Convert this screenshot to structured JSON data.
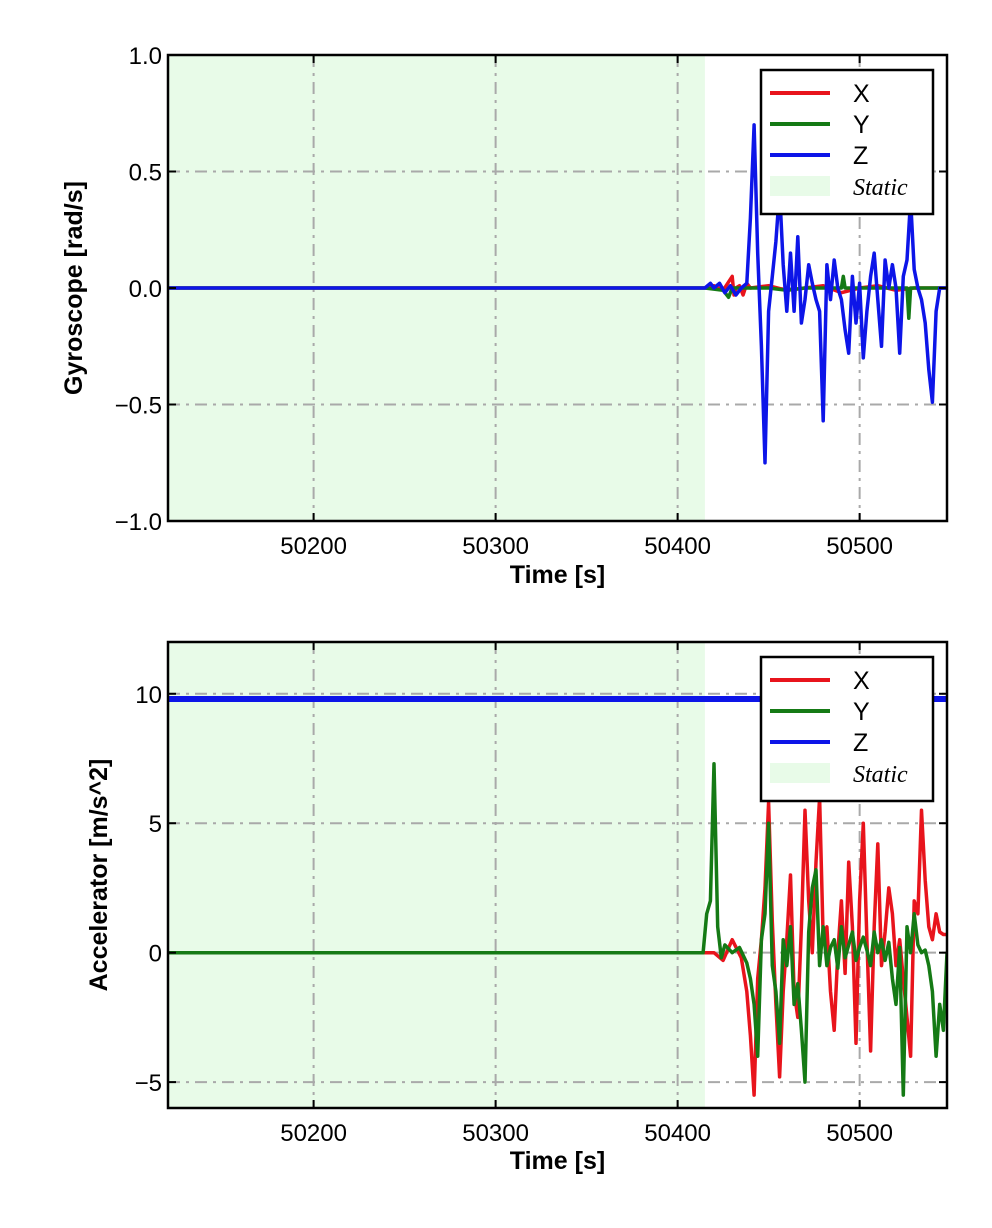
{
  "chart_data": [
    {
      "type": "line",
      "xlabel": "Time [s]",
      "ylabel": "Gyroscope [rad/s]",
      "xlim": [
        50120,
        50548
      ],
      "ylim": [
        -1.0,
        1.0
      ],
      "xticks": [
        50200,
        50300,
        50400,
        50500
      ],
      "xtick_labels": [
        "50200",
        "50300",
        "50400",
        "50500"
      ],
      "yticks": [
        -1.0,
        -0.5,
        0.0,
        0.5,
        1.0
      ],
      "ytick_labels": [
        "−1.0",
        "−0.5",
        "0.0",
        "0.5",
        "1.0"
      ],
      "grid": true,
      "legend_position": "top-right",
      "static_span": [
        50120,
        50415
      ],
      "static_label": "Static",
      "series": [
        {
          "name": "X",
          "color": "#e8141c",
          "x": [
            50120,
            50415,
            50420,
            50425,
            50430,
            50431,
            50432,
            50434,
            50436,
            50438,
            50440,
            50450,
            50460,
            50470,
            50480,
            50490,
            50500,
            50510,
            50520,
            50530,
            50540,
            50548
          ],
          "y": [
            0,
            0,
            0.01,
            -0.01,
            0.05,
            -0.03,
            0.0,
            0.01,
            -0.03,
            0.02,
            0.0,
            0.01,
            -0.01,
            0.0,
            0.01,
            -0.02,
            0.0,
            0.01,
            -0.01,
            0.0,
            0.0,
            0.0
          ]
        },
        {
          "name": "Y",
          "color": "#157a15",
          "x": [
            50120,
            50415,
            50425,
            50428,
            50430,
            50440,
            50450,
            50460,
            50470,
            50480,
            50490,
            50491,
            50492,
            50500,
            50510,
            50520,
            50526,
            50527,
            50528,
            50535,
            50548
          ],
          "y": [
            0,
            0,
            -0.01,
            -0.04,
            0.0,
            0.0,
            0.0,
            -0.01,
            0.0,
            0.0,
            0.0,
            0.05,
            0.0,
            0.0,
            0.0,
            0.0,
            0.0,
            -0.13,
            0.0,
            0.0,
            0.0
          ]
        },
        {
          "name": "Z",
          "color": "#0d15e8",
          "x": [
            50120,
            50415,
            50418,
            50420,
            50423,
            50426,
            50429,
            50432,
            50435,
            50438,
            50440,
            50442,
            50444,
            50446,
            50448,
            50450,
            50452,
            50454,
            50456,
            50458,
            50460,
            50462,
            50464,
            50466,
            50468,
            50470,
            50472,
            50474,
            50476,
            50478,
            50480,
            50482,
            50484,
            50486,
            50488,
            50490,
            50492,
            50494,
            50496,
            50498,
            50500,
            50502,
            50504,
            50506,
            50508,
            50510,
            50512,
            50514,
            50516,
            50518,
            50520,
            50522,
            50524,
            50526,
            50528,
            50530,
            50532,
            50534,
            50536,
            50538,
            50540,
            50542,
            50544,
            50546,
            50548
          ],
          "y": [
            0,
            0,
            0.02,
            0.0,
            0.02,
            -0.02,
            0.01,
            -0.03,
            0.0,
            0.02,
            0.3,
            0.7,
            0.15,
            -0.25,
            -0.75,
            -0.1,
            0.05,
            0.2,
            0.42,
            0.1,
            -0.1,
            0.15,
            -0.1,
            0.22,
            -0.15,
            -0.05,
            0.1,
            0.02,
            -0.05,
            -0.1,
            -0.57,
            0.1,
            -0.05,
            0.12,
            0.0,
            -0.05,
            -0.18,
            -0.28,
            0.05,
            -0.15,
            0.02,
            -0.3,
            -0.1,
            0.05,
            0.15,
            -0.05,
            -0.25,
            0.12,
            0.0,
            0.1,
            0.0,
            -0.28,
            0.05,
            0.12,
            0.38,
            0.08,
            0.0,
            -0.05,
            -0.15,
            -0.35,
            -0.49,
            -0.1,
            0.0,
            0.0,
            0.0
          ]
        }
      ]
    },
    {
      "type": "line",
      "xlabel": "Time [s]",
      "ylabel": "Accelerator [m/s^2]",
      "xlim": [
        50120,
        50548
      ],
      "ylim": [
        -6,
        12
      ],
      "xticks": [
        50200,
        50300,
        50400,
        50500
      ],
      "xtick_labels": [
        "50200",
        "50300",
        "50400",
        "50500"
      ],
      "yticks": [
        -5,
        0,
        5,
        10
      ],
      "ytick_labels": [
        "−5",
        "0",
        "5",
        "10"
      ],
      "grid": true,
      "legend_position": "top-right",
      "static_span": [
        50120,
        50415
      ],
      "static_label": "Static",
      "series": [
        {
          "name": "X",
          "color": "#e8141c",
          "x": [
            50120,
            50415,
            50420,
            50425,
            50430,
            50435,
            50438,
            50440,
            50442,
            50444,
            50446,
            50448,
            50450,
            50452,
            50454,
            50456,
            50458,
            50460,
            50462,
            50464,
            50466,
            50468,
            50470,
            50472,
            50474,
            50476,
            50478,
            50480,
            50482,
            50484,
            50486,
            50488,
            50490,
            50492,
            50494,
            50496,
            50498,
            50500,
            50502,
            50504,
            50506,
            50508,
            50510,
            50512,
            50514,
            50516,
            50518,
            50520,
            50522,
            50524,
            50526,
            50528,
            50530,
            50532,
            50534,
            50536,
            50538,
            50540,
            50542,
            50544,
            50546,
            50548
          ],
          "y": [
            0,
            0,
            0.0,
            -0.3,
            0.5,
            -0.2,
            -1.5,
            -3.2,
            -5.5,
            -1.0,
            0.5,
            2.5,
            5.8,
            1.2,
            -2.0,
            -4.8,
            -1.5,
            0.5,
            3.0,
            -1.5,
            -2.5,
            1.0,
            5.5,
            2.0,
            0.0,
            3.5,
            6.0,
            0.5,
            1.0,
            -1.5,
            -3.0,
            0.0,
            2.0,
            -0.8,
            3.5,
            1.0,
            -3.5,
            2.0,
            5.0,
            0.5,
            -3.8,
            1.0,
            4.2,
            -0.5,
            0.8,
            2.5,
            1.5,
            -0.5,
            0.5,
            -1.0,
            -2.5,
            -4.0,
            2.0,
            1.5,
            5.5,
            2.8,
            1.0,
            0.5,
            1.5,
            0.8,
            0.7,
            0.7
          ]
        },
        {
          "name": "Y",
          "color": "#157a15",
          "x": [
            50120,
            50414,
            50416,
            50418,
            50420,
            50422,
            50424,
            50426,
            50430,
            50434,
            50438,
            50440,
            50442,
            50444,
            50446,
            50448,
            50450,
            50452,
            50454,
            50456,
            50458,
            50460,
            50462,
            50464,
            50466,
            50468,
            50470,
            50472,
            50474,
            50476,
            50478,
            50480,
            50482,
            50484,
            50486,
            50488,
            50490,
            50492,
            50494,
            50496,
            50498,
            50500,
            50502,
            50504,
            50506,
            50508,
            50510,
            50512,
            50514,
            50516,
            50518,
            50520,
            50522,
            50524,
            50526,
            50528,
            50530,
            50532,
            50534,
            50536,
            50538,
            50540,
            50542,
            50544,
            50546,
            50548
          ],
          "y": [
            0,
            0,
            1.5,
            2.0,
            7.3,
            1.0,
            -0.2,
            0.3,
            0.0,
            0.2,
            -0.4,
            -1.0,
            -2.0,
            -4.0,
            0.5,
            1.5,
            5.0,
            -0.5,
            -1.5,
            -3.5,
            0.5,
            -0.5,
            1.0,
            -2.0,
            -1.2,
            -3.0,
            -5.0,
            0.8,
            2.5,
            3.2,
            -0.5,
            1.0,
            -0.5,
            0.2,
            0.5,
            -0.6,
            1.0,
            -0.2,
            0.3,
            0.8,
            -0.3,
            0.2,
            0.6,
            0.1,
            -0.5,
            0.8,
            0.0,
            0.5,
            -0.3,
            0.4,
            -1.0,
            -2.0,
            0.2,
            -5.5,
            1.0,
            0.0,
            1.5,
            0.3,
            0.0,
            0.1,
            -0.5,
            -1.5,
            -4.0,
            -2.0,
            -3.0,
            0.0
          ]
        },
        {
          "name": "Z",
          "color": "#0d15e8",
          "x": [
            50120,
            50548
          ],
          "y": [
            9.8,
            9.8
          ]
        }
      ]
    }
  ]
}
